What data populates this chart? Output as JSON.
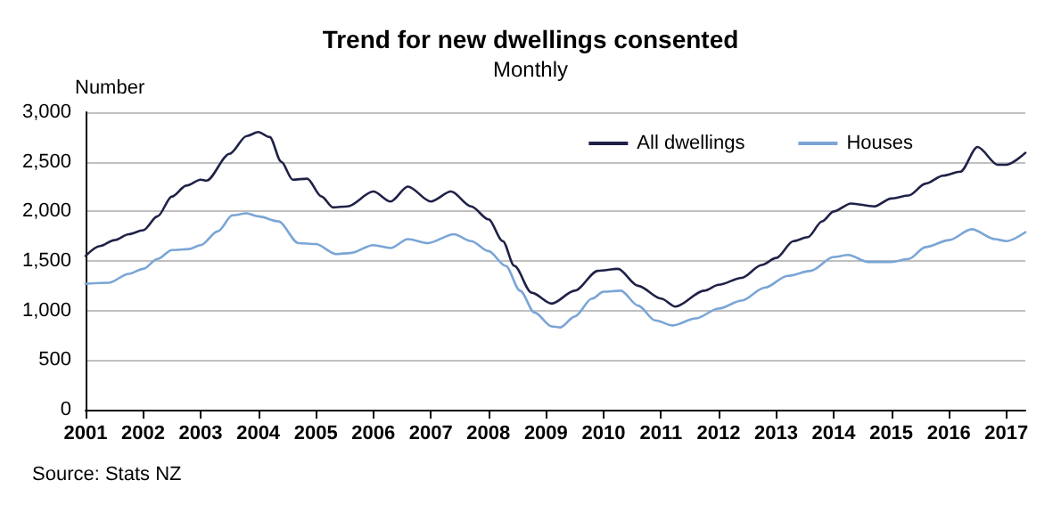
{
  "chart_data": {
    "type": "line",
    "title": "Trend for new dwellings consented",
    "subtitle": "Monthly",
    "ylabel": "Number",
    "annotations": [
      "Source: Stats NZ"
    ],
    "xlim": [
      2001,
      2017.33
    ],
    "xticks": [
      2001,
      2002,
      2003,
      2004,
      2005,
      2006,
      2007,
      2008,
      2009,
      2010,
      2011,
      2012,
      2013,
      2014,
      2015,
      2016,
      2017
    ],
    "ylim": [
      0,
      3000
    ],
    "yticks": [
      0,
      500,
      {
        "value": 1000,
        "label": "1,000"
      },
      {
        "value": 1500,
        "label": "1,500"
      },
      {
        "value": 2000,
        "label": "2,000"
      },
      {
        "value": 2500,
        "label": "2,500"
      },
      {
        "value": 3000,
        "label": "3,000"
      }
    ],
    "grid": "y",
    "legend": "top right",
    "marker": "none",
    "line_style": "solid",
    "series": [
      {
        "name": "All dwellings",
        "color": "#1f2147",
        "x": [
          2001,
          2001.25,
          2001.5,
          2001.75,
          2002,
          2002.25,
          2002.5,
          2002.75,
          2003,
          2003.1,
          2003.5,
          2003.8,
          2004,
          2004.2,
          2004.4,
          2004.6,
          2004.85,
          2005.1,
          2005.3,
          2005.55,
          2006,
          2006.3,
          2006.6,
          2007,
          2007.35,
          2007.7,
          2008,
          2008.25,
          2008.45,
          2008.75,
          2009.1,
          2009.5,
          2009.9,
          2010.25,
          2010.6,
          2011,
          2011.25,
          2011.75,
          2012,
          2012.4,
          2012.75,
          2013,
          2013.3,
          2013.55,
          2013.8,
          2014,
          2014.3,
          2014.7,
          2015,
          2015.3,
          2015.6,
          2015.9,
          2016.2,
          2016.5,
          2016.85,
          2017,
          2017.33
        ],
        "values": [
          1550,
          1650,
          1710,
          1770,
          1810,
          1950,
          2150,
          2260,
          2320,
          2310,
          2580,
          2760,
          2800,
          2750,
          2500,
          2320,
          2330,
          2150,
          2040,
          2050,
          2200,
          2100,
          2250,
          2100,
          2200,
          2050,
          1920,
          1700,
          1450,
          1180,
          1070,
          1200,
          1400,
          1420,
          1250,
          1120,
          1040,
          1200,
          1260,
          1330,
          1460,
          1530,
          1700,
          1740,
          1900,
          2000,
          2080,
          2050,
          2130,
          2160,
          2280,
          2360,
          2400,
          2650,
          2470,
          2470,
          2590
        ]
      },
      {
        "name": "Houses",
        "color": "#7aa5d6",
        "x": [
          2001,
          2001.4,
          2001.75,
          2002,
          2002.25,
          2002.5,
          2002.8,
          2003,
          2003.3,
          2003.55,
          2003.8,
          2004,
          2004.35,
          2004.7,
          2005,
          2005.35,
          2005.6,
          2006,
          2006.3,
          2006.6,
          2006.95,
          2007.4,
          2007.7,
          2008,
          2008.3,
          2008.55,
          2008.8,
          2009.1,
          2009.25,
          2009.5,
          2009.8,
          2010,
          2010.3,
          2010.6,
          2010.9,
          2011.2,
          2011.6,
          2012,
          2012.4,
          2012.8,
          2013.2,
          2013.6,
          2014,
          2014.25,
          2014.6,
          2015,
          2015.3,
          2015.6,
          2016,
          2016.4,
          2016.8,
          2017,
          2017.33
        ],
        "values": [
          1270,
          1280,
          1370,
          1420,
          1520,
          1610,
          1620,
          1660,
          1800,
          1960,
          1980,
          1950,
          1900,
          1680,
          1670,
          1570,
          1580,
          1660,
          1630,
          1720,
          1680,
          1770,
          1700,
          1600,
          1450,
          1200,
          980,
          840,
          830,
          940,
          1120,
          1190,
          1200,
          1050,
          900,
          850,
          920,
          1020,
          1100,
          1230,
          1350,
          1400,
          1540,
          1560,
          1490,
          1490,
          1520,
          1640,
          1710,
          1820,
          1720,
          1700,
          1790
        ]
      }
    ]
  }
}
